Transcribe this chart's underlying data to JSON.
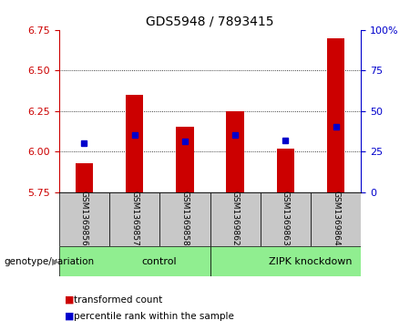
{
  "title": "GDS5948 / 7893415",
  "samples": [
    "GSM1369856",
    "GSM1369857",
    "GSM1369858",
    "GSM1369862",
    "GSM1369863",
    "GSM1369864"
  ],
  "red_values": [
    5.93,
    6.35,
    6.15,
    6.25,
    6.02,
    6.7
  ],
  "blue_values": [
    6.05,
    6.1,
    6.065,
    6.1,
    6.07,
    6.15
  ],
  "y_min": 5.75,
  "y_max": 6.75,
  "y_ticks": [
    5.75,
    6.0,
    6.25,
    6.5,
    6.75
  ],
  "right_y_ticks": [
    0,
    25,
    50,
    75,
    100
  ],
  "groups": [
    {
      "label": "control",
      "start": 0,
      "end": 3,
      "color": "#90EE90"
    },
    {
      "label": "ZIPK knockdown",
      "start": 3,
      "end": 6,
      "color": "#90EE90"
    }
  ],
  "group_label_row": "genotype/variation",
  "red_color": "#CC0000",
  "blue_color": "#0000CC",
  "bar_width": 0.35,
  "title_fontsize": 10,
  "tick_fontsize": 8,
  "sample_box_color": "#C8C8C8",
  "legend_red": "transformed count",
  "legend_blue": "percentile rank within the sample"
}
